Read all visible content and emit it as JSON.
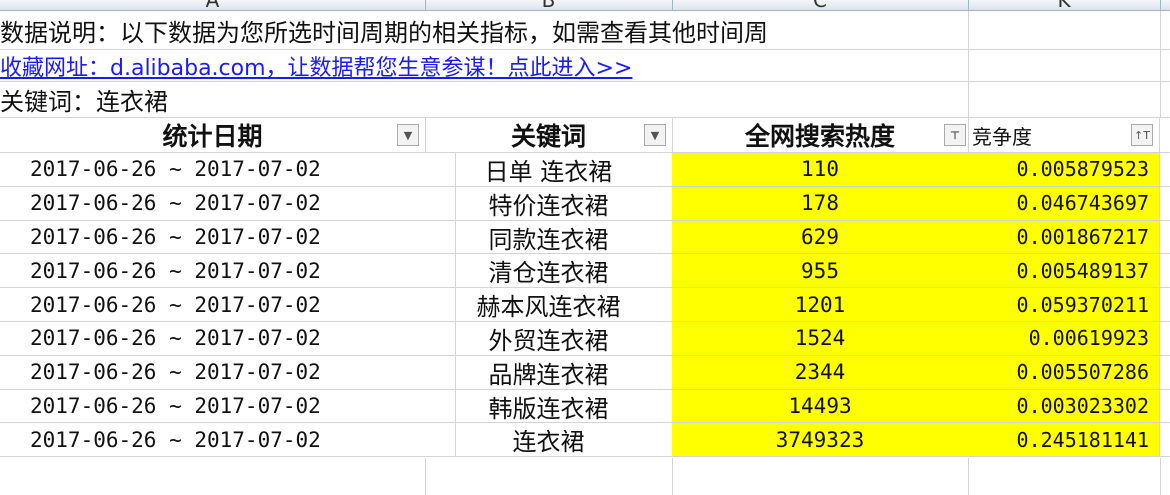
{
  "columns": [
    "A",
    "B",
    "C",
    "K"
  ],
  "description": "数据说明：以下数据为您所选时间周期的相关指标，如需查看其他时间周",
  "link": "收藏网址：d.alibaba.com，让数据帮您生意参谋！点此进入>>",
  "keyword_label": "关键词：连衣裙",
  "headers": {
    "date": "统计日期",
    "keyword": "关键词",
    "search_heat": "全网搜索热度",
    "competition": "竞争度"
  },
  "highlight_color": "#ffff00",
  "rows": [
    {
      "date": "2017-06-26 ~ 2017-07-02",
      "keyword": "日单 连衣裙",
      "heat": "110",
      "comp": "0.005879523"
    },
    {
      "date": "2017-06-26 ~ 2017-07-02",
      "keyword": "特价连衣裙",
      "heat": "178",
      "comp": "0.046743697"
    },
    {
      "date": "2017-06-26 ~ 2017-07-02",
      "keyword": "同款连衣裙",
      "heat": "629",
      "comp": "0.001867217"
    },
    {
      "date": "2017-06-26 ~ 2017-07-02",
      "keyword": "清仓连衣裙",
      "heat": "955",
      "comp": "0.005489137"
    },
    {
      "date": "2017-06-26 ~ 2017-07-02",
      "keyword": "赫本风连衣裙",
      "heat": "1201",
      "comp": "0.059370211"
    },
    {
      "date": "2017-06-26 ~ 2017-07-02",
      "keyword": "外贸连衣裙",
      "heat": "1524",
      "comp": "0.00619923"
    },
    {
      "date": "2017-06-26 ~ 2017-07-02",
      "keyword": "品牌连衣裙",
      "heat": "2344",
      "comp": "0.005507286"
    },
    {
      "date": "2017-06-26 ~ 2017-07-02",
      "keyword": "韩版连衣裙",
      "heat": "14493",
      "comp": "0.003023302"
    },
    {
      "date": "2017-06-26 ~ 2017-07-02",
      "keyword": "连衣裙",
      "heat": "3749323",
      "comp": "0.245181141"
    }
  ]
}
